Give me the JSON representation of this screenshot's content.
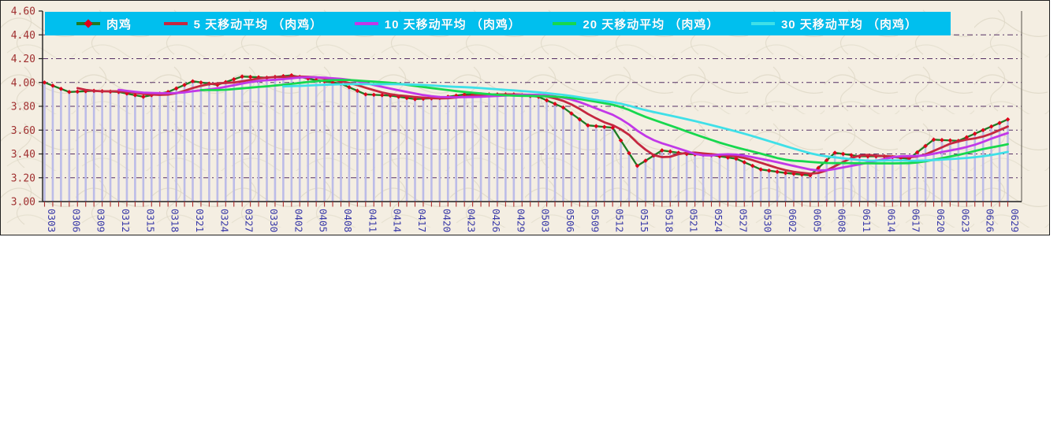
{
  "window": {
    "bg": "#ffffff"
  },
  "chart_frame": {
    "bg": "#f4eee2",
    "border_color": "#1f1f1f"
  },
  "legend": {
    "bg": "#00bfee",
    "text_color": "#ffffff",
    "items": [
      {
        "label": "肉鸡",
        "color": "#1e7b24",
        "marker": "diamond",
        "marker_color": "#e0001a"
      },
      {
        "label": "5 天移动平均 （肉鸡）",
        "color": "#c52740",
        "marker": "none"
      },
      {
        "label": "10 天移动平均 （肉鸡）",
        "color": "#c238e8",
        "marker": "none"
      },
      {
        "label": "20 天移动平均 （肉鸡）",
        "color": "#17d84e",
        "marker": "none"
      },
      {
        "label": "30 天移动平均 （肉鸡）",
        "color": "#3fe0e8",
        "marker": "none"
      }
    ]
  },
  "axes": {
    "y_tick_labels": [
      "4.60",
      "4.40",
      "4.20",
      "4.00",
      "3.80",
      "3.60",
      "3.40",
      "3.20",
      "3.00"
    ],
    "y_label_color": "#a03030",
    "x_label_color": "#3939a8",
    "x_tick_color": "#b03030",
    "axis_line_color": "#1f1f1f",
    "gridline_color": "#553065",
    "drop_line_color": "#bcbce8"
  },
  "chart_data": {
    "type": "line",
    "title": "",
    "xlabel": "",
    "ylabel": "",
    "ylim": [
      3.0,
      4.6
    ],
    "ytick_step": 0.2,
    "grid": "horizontal-dashed",
    "drop_lines": true,
    "legend_position": "top",
    "points_between_labels": 2,
    "x_labels": [
      "0303",
      "0306",
      "0309",
      "0312",
      "0315",
      "0318",
      "0321",
      "0324",
      "0327",
      "0330",
      "0402",
      "0405",
      "0408",
      "0411",
      "0414",
      "0417",
      "0420",
      "0423",
      "0426",
      "0429",
      "0503",
      "0506",
      "0509",
      "0512",
      "0515",
      "0518",
      "0521",
      "0524",
      "0527",
      "0530",
      "0602",
      "0605",
      "0608",
      "0611",
      "0614",
      "0617",
      "0620",
      "0623",
      "0626",
      "0629"
    ],
    "series": [
      {
        "name": "肉鸡",
        "role": "price",
        "color": "#1e7b24",
        "marker": "diamond",
        "marker_color": "#e0001a",
        "values": [
          4.0,
          3.92,
          3.93,
          3.92,
          3.88,
          3.92,
          4.01,
          3.98,
          4.05,
          4.04,
          4.06,
          4.02,
          3.99,
          3.9,
          3.89,
          3.86,
          3.87,
          3.9,
          3.9,
          3.9,
          3.88,
          3.79,
          3.64,
          3.62,
          3.3,
          3.43,
          3.4,
          3.39,
          3.36,
          3.27,
          3.24,
          3.22,
          3.41,
          3.38,
          3.38,
          3.36,
          3.52,
          3.51,
          3.6,
          3.69
        ]
      },
      {
        "name": "5 天移动平均 （肉鸡）",
        "role": "moving_average",
        "window": 5,
        "derived_from": "肉鸡",
        "color": "#c52740"
      },
      {
        "name": "10 天移动平均 （肉鸡）",
        "role": "moving_average",
        "window": 10,
        "derived_from": "肉鸡",
        "color": "#c238e8"
      },
      {
        "name": "20 天移动平均 （肉鸡）",
        "role": "moving_average",
        "window": 20,
        "derived_from": "肉鸡",
        "color": "#17d84e"
      },
      {
        "name": "30 天移动平均 （肉鸡）",
        "role": "moving_average",
        "window": 30,
        "derived_from": "肉鸡",
        "color": "#3fe0e8"
      }
    ]
  }
}
